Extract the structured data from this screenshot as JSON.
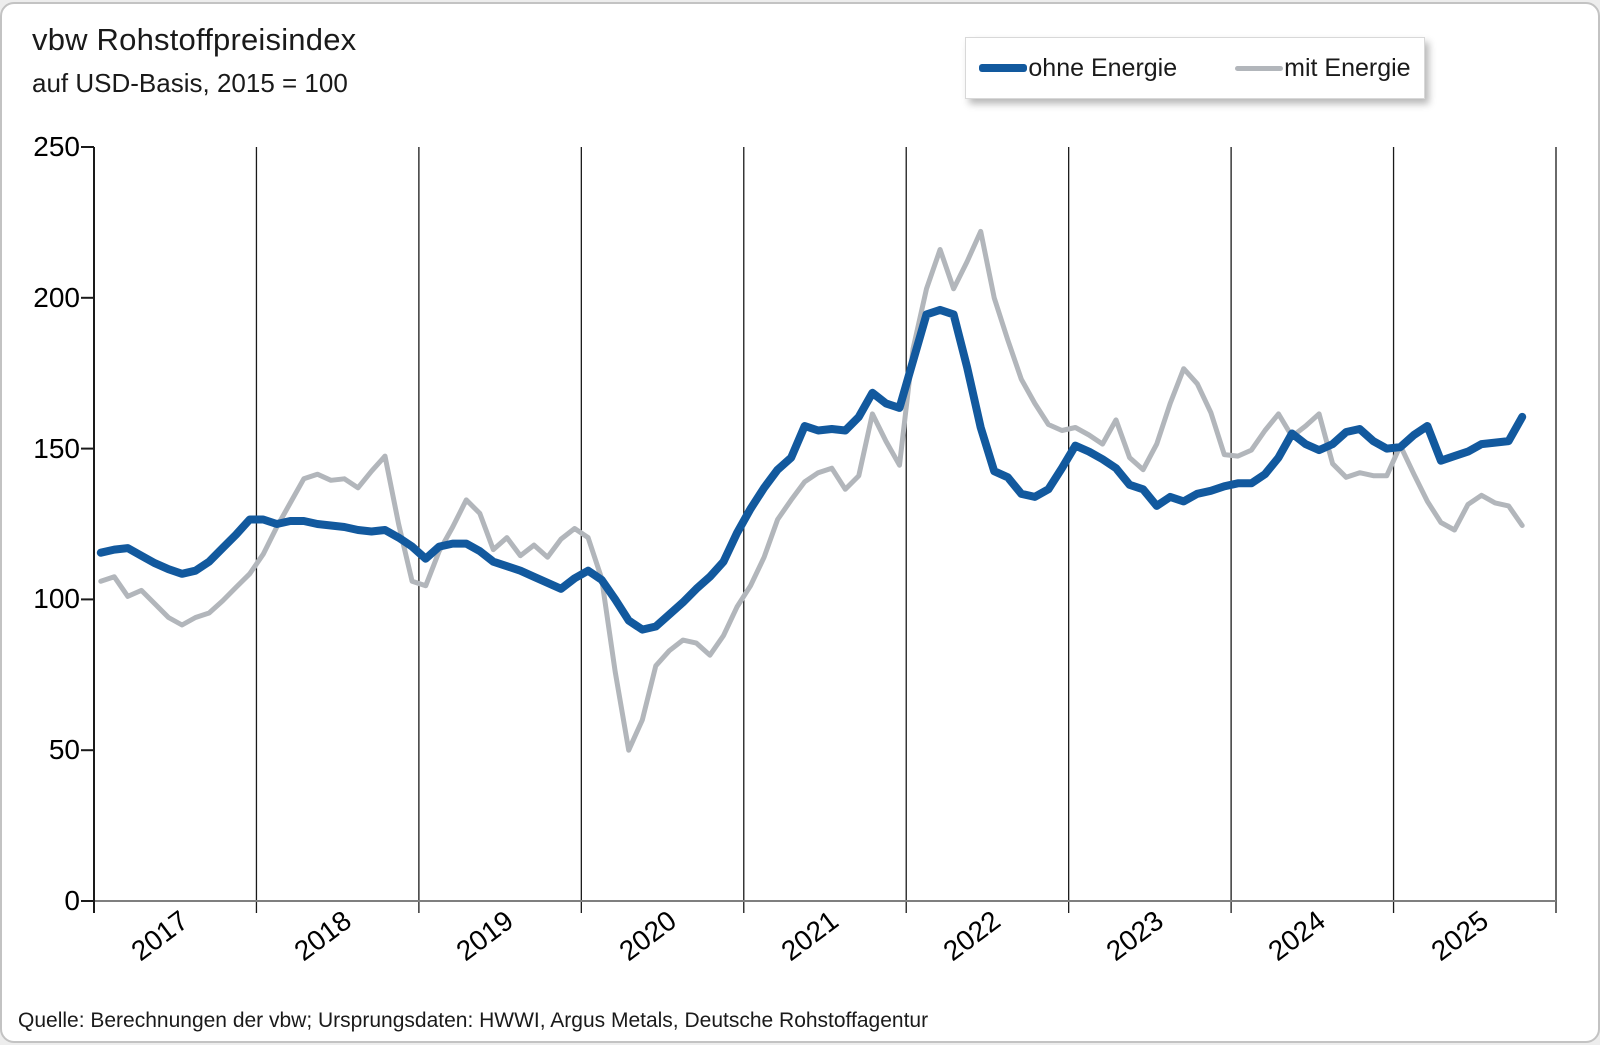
{
  "page": {
    "title": "vbw Rohstoffpreisindex",
    "subtitle": "auf USD-Basis, 2015 = 100",
    "source": "Quelle: Berechnungen der vbw; Ursprungsdaten: HWWI, Argus Metals, Deutsche Rohstoffagentur"
  },
  "legend": {
    "position": "top-right",
    "items": [
      {
        "label": "ohne Energie",
        "color": "#12599E",
        "thickness": 8
      },
      {
        "label": "mit Energie",
        "color": "#B2B6BB",
        "thickness": 5
      }
    ]
  },
  "chart_data": {
    "type": "line",
    "title": "vbw Rohstoffpreisindex",
    "subtitle": "auf USD-Basis, 2015 = 100",
    "x_start": "2017-01",
    "x_end": "2025-10",
    "frequency": "monthly",
    "x_tick_labels": [
      "2017",
      "2018",
      "2019",
      "2020",
      "2021",
      "2022",
      "2023",
      "2024",
      "2025"
    ],
    "x_axis_span_years": 9,
    "y_ticks": [
      0,
      50,
      100,
      150,
      200,
      250
    ],
    "ylim": [
      0,
      250
    ],
    "grid": "vertical-year-lines",
    "legend_position": "top-right",
    "axis_color": "#1a1a1a",
    "baseline_color": "#7f7f7f",
    "series": [
      {
        "name": "ohne Energie",
        "color": "#12599E",
        "values": [
          115.5,
          116.5,
          117,
          114.5,
          112,
          110,
          108.5,
          109.5,
          112.5,
          117,
          121.5,
          126.5,
          126.5,
          125,
          126,
          126,
          125,
          124.5,
          124,
          123,
          122.5,
          123,
          120.5,
          117.5,
          113.5,
          117.5,
          118.5,
          118.5,
          116,
          112.5,
          111,
          109.5,
          107.5,
          105.5,
          103.5,
          107,
          109.5,
          106.5,
          100,
          93,
          90,
          91,
          95,
          99,
          103.5,
          107.5,
          112.5,
          122,
          130,
          137,
          143,
          147,
          157.5,
          156,
          156.5,
          156,
          160.5,
          168.5,
          165,
          163.5,
          179,
          194.5,
          196,
          194.5,
          177,
          157,
          142.5,
          140.5,
          135,
          134,
          136.5,
          143.5,
          151,
          149,
          146.5,
          143.5,
          138,
          136.5,
          131,
          134,
          132.5,
          135,
          136,
          137.5,
          138.5,
          138.5,
          141.5,
          147,
          155,
          151.5,
          149.5,
          151.5,
          155.5,
          156.5,
          152.5,
          150,
          150.5,
          154.5,
          157.5,
          146,
          147.5,
          149,
          151.5,
          152,
          152.5,
          160.5
        ]
      },
      {
        "name": "mit Energie",
        "color": "#B2B6BB",
        "values": [
          106,
          107.5,
          101,
          103,
          98.5,
          94,
          91.5,
          94,
          95.5,
          99.5,
          104,
          108.5,
          115,
          124,
          132,
          140,
          141.5,
          139.5,
          140,
          137,
          142.5,
          147.5,
          125,
          106,
          104.5,
          116,
          124,
          133,
          128.5,
          116.5,
          120.5,
          114.5,
          118,
          114,
          120,
          123.5,
          120.5,
          107,
          76,
          50,
          60,
          78,
          83,
          86.5,
          85.5,
          81.5,
          88,
          97.5,
          104.5,
          114,
          126.5,
          133,
          139,
          142,
          143.5,
          136.5,
          141,
          161.5,
          152.5,
          144.5,
          183,
          203,
          216,
          203,
          212,
          222,
          200,
          186,
          173,
          165,
          158,
          156,
          157,
          154.5,
          151.5,
          159.5,
          147,
          143,
          151.5,
          165,
          176.5,
          171.5,
          162,
          148,
          147.5,
          149.5,
          156,
          161.5,
          154,
          157.5,
          161.5,
          145,
          140.5,
          142,
          141,
          141,
          151,
          141.5,
          132.5,
          125.5,
          123,
          131.5,
          134.5,
          132,
          131,
          124.5
        ]
      }
    ]
  }
}
